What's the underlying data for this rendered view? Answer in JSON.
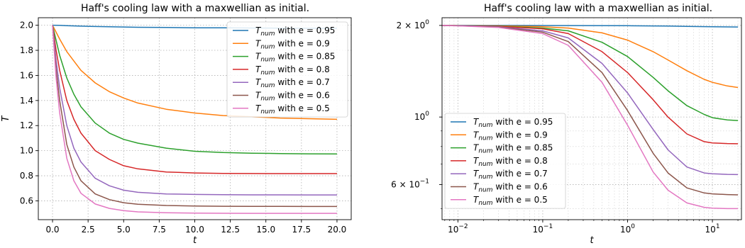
{
  "chart_data": [
    {
      "type": "line",
      "title": "Haff's cooling law with a maxwellian as initial.",
      "xlabel": "t",
      "ylabel": "T",
      "xscale": "linear",
      "yscale": "linear",
      "xlim": [
        -1.0,
        21.0
      ],
      "ylim": [
        0.45,
        2.06
      ],
      "xticks": [
        0.0,
        2.5,
        5.0,
        7.5,
        10.0,
        12.5,
        15.0,
        17.5,
        20.0
      ],
      "xtick_labels": [
        "0.0",
        "2.5",
        "5.0",
        "7.5",
        "10.0",
        "12.5",
        "15.0",
        "17.5",
        "20.0"
      ],
      "yticks": [
        0.6,
        0.8,
        1.0,
        1.2,
        1.4,
        1.6,
        1.8,
        2.0
      ],
      "ytick_labels": [
        "0.6",
        "0.8",
        "1.0",
        "1.2",
        "1.4",
        "1.6",
        "1.8",
        "2.0"
      ],
      "grid": true,
      "legend_position": "upper right",
      "series": [
        {
          "name": "T_num with e = 0.95",
          "label_main": "T",
          "label_sub": "num",
          "label_rest": " with e = 0.95",
          "color": "#1f77b4",
          "x": [
            0,
            0.5,
            1,
            2,
            3,
            4,
            5,
            6,
            8,
            10,
            12,
            14,
            16,
            18,
            20
          ],
          "y": [
            2.0,
            1.999,
            1.996,
            1.993,
            1.99,
            1.988,
            1.986,
            1.984,
            1.982,
            1.98,
            1.979,
            1.978,
            1.977,
            1.976,
            1.976
          ]
        },
        {
          "name": "T_num with e = 0.9",
          "label_main": "T",
          "label_sub": "num",
          "label_rest": " with e = 0.9",
          "color": "#ff7f0e",
          "x": [
            0,
            0.5,
            1,
            2,
            3,
            4,
            5,
            6,
            8,
            10,
            12,
            14,
            16,
            18,
            20
          ],
          "y": [
            2.0,
            1.89,
            1.79,
            1.64,
            1.54,
            1.47,
            1.42,
            1.38,
            1.33,
            1.3,
            1.28,
            1.27,
            1.26,
            1.255,
            1.25
          ]
        },
        {
          "name": "T_num with e = 0.85",
          "label_main": "T",
          "label_sub": "num",
          "label_rest": " with e = 0.85",
          "color": "#2ca02c",
          "x": [
            0,
            0.5,
            1,
            1.5,
            2,
            3,
            4,
            5,
            6,
            8,
            10,
            12,
            14,
            16,
            18,
            20
          ],
          "y": [
            2.0,
            1.76,
            1.58,
            1.45,
            1.35,
            1.22,
            1.14,
            1.09,
            1.06,
            1.02,
            0.995,
            0.985,
            0.98,
            0.977,
            0.975,
            0.974
          ]
        },
        {
          "name": "T_num with e = 0.8",
          "label_main": "T",
          "label_sub": "num",
          "label_rest": " with e = 0.8",
          "color": "#d62728",
          "x": [
            0,
            0.25,
            0.5,
            1,
            1.5,
            2,
            3,
            4,
            5,
            6,
            8,
            10,
            12,
            14,
            16,
            18,
            20
          ],
          "y": [
            2.0,
            1.8,
            1.64,
            1.4,
            1.25,
            1.14,
            1.0,
            0.93,
            0.88,
            0.855,
            0.83,
            0.822,
            0.819,
            0.818,
            0.817,
            0.817,
            0.817
          ]
        },
        {
          "name": "T_num with e = 0.7",
          "label_main": "T",
          "label_sub": "num",
          "label_rest": " with e = 0.7",
          "color": "#9467bd",
          "x": [
            0,
            0.25,
            0.5,
            1,
            1.5,
            2,
            3,
            4,
            5,
            6,
            8,
            10,
            12,
            14,
            16,
            18,
            20
          ],
          "y": [
            2.0,
            1.72,
            1.5,
            1.2,
            1.02,
            0.91,
            0.78,
            0.72,
            0.685,
            0.668,
            0.655,
            0.651,
            0.649,
            0.648,
            0.648,
            0.647,
            0.647
          ]
        },
        {
          "name": "T_num with e = 0.6",
          "label_main": "T",
          "label_sub": "num",
          "label_rest": " with e = 0.6",
          "color": "#8c564b",
          "x": [
            0,
            0.25,
            0.5,
            1,
            1.5,
            2,
            3,
            4,
            5,
            6,
            8,
            10,
            12,
            14,
            16,
            18,
            20
          ],
          "y": [
            2.0,
            1.65,
            1.4,
            1.05,
            0.87,
            0.76,
            0.655,
            0.61,
            0.585,
            0.573,
            0.563,
            0.559,
            0.557,
            0.556,
            0.556,
            0.555,
            0.555
          ]
        },
        {
          "name": "T_num with e = 0.5",
          "label_main": "T",
          "label_sub": "num",
          "label_rest": " with e = 0.5",
          "color": "#e377c2",
          "x": [
            0,
            0.25,
            0.5,
            1,
            1.5,
            2,
            3,
            4,
            5,
            6,
            8,
            10,
            12,
            14,
            16,
            18,
            20
          ],
          "y": [
            2.0,
            1.58,
            1.3,
            0.94,
            0.76,
            0.66,
            0.575,
            0.54,
            0.522,
            0.512,
            0.505,
            0.502,
            0.501,
            0.5,
            0.5,
            0.5,
            0.5
          ]
        }
      ]
    },
    {
      "type": "line",
      "title": "Haff's cooling law with a maxwellian as initial.",
      "xlabel": "t",
      "ylabel": "",
      "xscale": "log",
      "yscale": "log",
      "xlim": [
        0.0065,
        22
      ],
      "ylim": [
        0.46,
        2.12
      ],
      "xticks": [
        0.01,
        0.1,
        1,
        10
      ],
      "xtick_labels": [
        [
          "10",
          "−2"
        ],
        [
          "10",
          "−1"
        ],
        [
          "10",
          "0"
        ],
        [
          "10",
          "1"
        ]
      ],
      "yticks": [
        0.6,
        1.0,
        2.0
      ],
      "ytick_labels": [
        [
          "6 × 10",
          "−1"
        ],
        [
          "10",
          "0"
        ],
        [
          "2 × 10",
          "0"
        ]
      ],
      "grid": true,
      "legend_position": "lower left",
      "series": [
        {
          "name": "T_num with e = 0.95",
          "label_main": "T",
          "label_sub": "num",
          "label_rest": " with e = 0.95",
          "color": "#1f77b4",
          "x": [
            0.0065,
            0.01,
            0.03,
            0.1,
            0.3,
            1,
            2,
            3,
            5,
            10,
            20
          ],
          "y": [
            2.0,
            2.0,
            2.0,
            1.999,
            1.998,
            1.995,
            1.992,
            1.99,
            1.986,
            1.98,
            1.976
          ]
        },
        {
          "name": "T_num with e = 0.9",
          "label_main": "T",
          "label_sub": "num",
          "label_rest": " with e = 0.9",
          "color": "#ff7f0e",
          "x": [
            0.0065,
            0.01,
            0.03,
            0.1,
            0.2,
            0.5,
            1,
            2,
            3,
            5,
            8,
            10,
            15,
            20
          ],
          "y": [
            2.0,
            1.998,
            1.993,
            1.98,
            1.96,
            1.89,
            1.79,
            1.64,
            1.54,
            1.42,
            1.33,
            1.3,
            1.265,
            1.25
          ]
        },
        {
          "name": "T_num with e = 0.85",
          "label_main": "T",
          "label_sub": "num",
          "label_rest": " with e = 0.85",
          "color": "#2ca02c",
          "x": [
            0.0065,
            0.01,
            0.03,
            0.1,
            0.2,
            0.5,
            1,
            2,
            3,
            5,
            8,
            10,
            15,
            20
          ],
          "y": [
            2.0,
            1.997,
            1.988,
            1.96,
            1.92,
            1.76,
            1.58,
            1.35,
            1.22,
            1.09,
            1.02,
            0.995,
            0.978,
            0.974
          ]
        },
        {
          "name": "T_num with e = 0.8",
          "label_main": "T",
          "label_sub": "num",
          "label_rest": " with e = 0.8",
          "color": "#d62728",
          "x": [
            0.0065,
            0.01,
            0.03,
            0.1,
            0.2,
            0.5,
            1,
            2,
            3,
            5,
            8,
            10,
            15,
            20
          ],
          "y": [
            2.0,
            1.996,
            1.985,
            1.95,
            1.88,
            1.64,
            1.4,
            1.14,
            1.0,
            0.88,
            0.83,
            0.822,
            0.818,
            0.817
          ]
        },
        {
          "name": "T_num with e = 0.7",
          "label_main": "T",
          "label_sub": "num",
          "label_rest": " with e = 0.7",
          "color": "#9467bd",
          "x": [
            0.0065,
            0.01,
            0.03,
            0.1,
            0.2,
            0.5,
            1,
            2,
            3,
            5,
            8,
            10,
            15,
            20
          ],
          "y": [
            2.0,
            1.995,
            1.98,
            1.92,
            1.82,
            1.5,
            1.2,
            0.91,
            0.78,
            0.685,
            0.655,
            0.651,
            0.648,
            0.647
          ]
        },
        {
          "name": "T_num with e = 0.6",
          "label_main": "T",
          "label_sub": "num",
          "label_rest": " with e = 0.6",
          "color": "#8c564b",
          "x": [
            0.0065,
            0.01,
            0.03,
            0.1,
            0.2,
            0.5,
            1,
            2,
            3,
            5,
            8,
            10,
            15,
            20
          ],
          "y": [
            2.0,
            1.994,
            1.975,
            1.9,
            1.77,
            1.4,
            1.05,
            0.76,
            0.655,
            0.585,
            0.563,
            0.559,
            0.556,
            0.555
          ]
        },
        {
          "name": "T_num with e = 0.5",
          "label_main": "T",
          "label_sub": "num",
          "label_rest": " with e = 0.5",
          "color": "#e377c2",
          "x": [
            0.0065,
            0.01,
            0.03,
            0.1,
            0.2,
            0.5,
            1,
            2,
            3,
            5,
            8,
            10,
            15,
            20
          ],
          "y": [
            2.0,
            1.993,
            1.97,
            1.88,
            1.72,
            1.3,
            0.94,
            0.66,
            0.575,
            0.522,
            0.505,
            0.502,
            0.5,
            0.5
          ]
        }
      ]
    }
  ]
}
